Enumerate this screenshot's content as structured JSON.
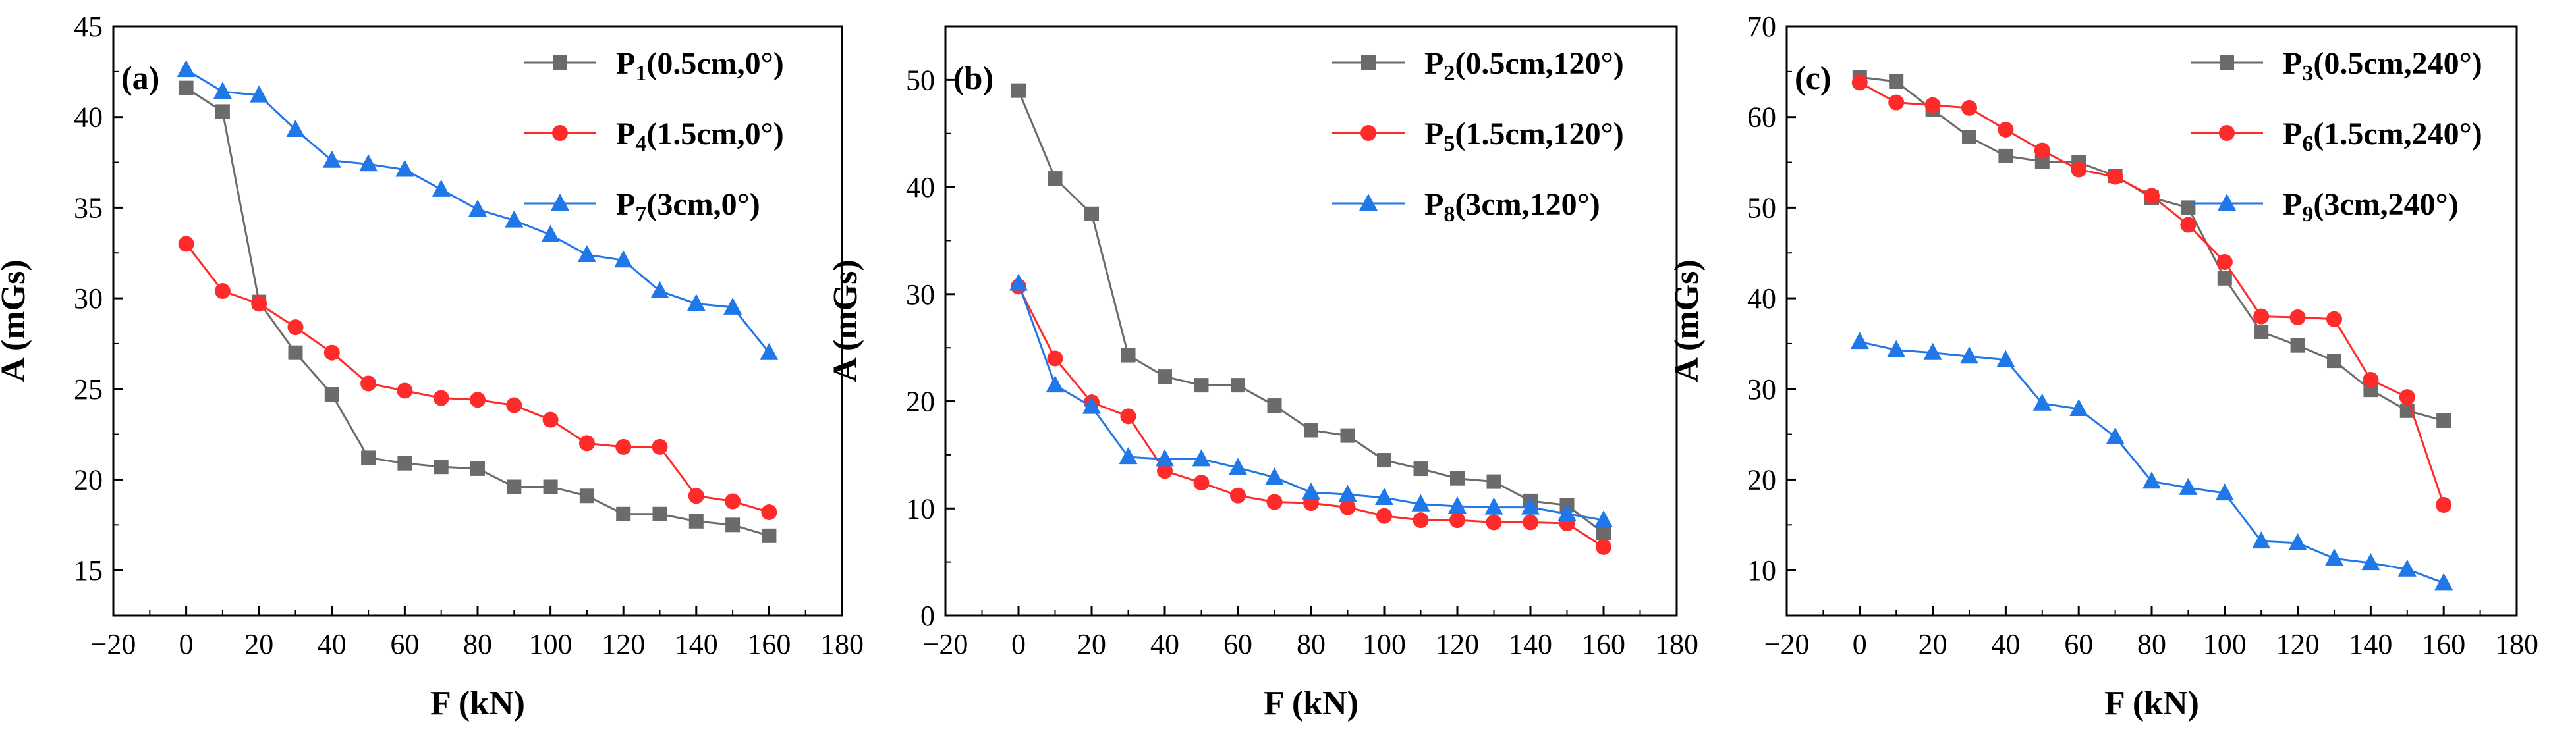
{
  "chart_data": [
    {
      "type": "line",
      "panel_label": "(a)",
      "xlabel": "F (kN)",
      "ylabel": "A (mGs)",
      "xlim": [
        -20,
        180
      ],
      "ylim": [
        12.5,
        45
      ],
      "xticks": [
        -20,
        0,
        20,
        40,
        60,
        80,
        100,
        120,
        140,
        160,
        180
      ],
      "yticks": [
        15,
        20,
        25,
        30,
        35,
        40,
        45
      ],
      "legend_position": "top-right",
      "grid": false,
      "x": [
        0,
        10,
        20,
        30,
        40,
        50,
        60,
        70,
        80,
        90,
        100,
        110,
        120,
        130,
        140,
        150,
        160
      ],
      "series": [
        {
          "name": "P1(0.5cm,0°)",
          "legend": {
            "base": "P",
            "sub": "1",
            "rest": "(0.5cm,0°)"
          },
          "marker": "square",
          "color": "#6b6b6b",
          "values": [
            41.6,
            40.3,
            29.8,
            27.0,
            24.7,
            21.2,
            20.9,
            20.7,
            20.6,
            19.6,
            19.6,
            19.1,
            18.1,
            18.1,
            17.7,
            17.5,
            16.9
          ]
        },
        {
          "name": "P4(1.5cm,0°)",
          "legend": {
            "base": "P",
            "sub": "4",
            "rest": "(1.5cm,0°)"
          },
          "marker": "circle",
          "color": "#ff2a2a",
          "values": [
            33.0,
            30.4,
            29.7,
            28.4,
            27.0,
            25.3,
            24.9,
            24.5,
            24.4,
            24.1,
            23.3,
            22.0,
            21.8,
            21.8,
            19.1,
            18.8,
            18.2
          ]
        },
        {
          "name": "P7(3cm,0°)",
          "legend": {
            "base": "P",
            "sub": "7",
            "rest": "(3cm,0°)"
          },
          "marker": "triangle",
          "color": "#1f77e8",
          "values": [
            42.6,
            41.4,
            41.2,
            39.3,
            37.6,
            37.4,
            37.1,
            36.0,
            34.9,
            34.3,
            33.5,
            32.4,
            32.1,
            30.4,
            29.7,
            29.5,
            27.0
          ]
        }
      ]
    },
    {
      "type": "line",
      "panel_label": "(b)",
      "xlabel": "F (kN)",
      "ylabel": "A (mGs)",
      "xlim": [
        -20,
        180
      ],
      "ylim": [
        0,
        55
      ],
      "xticks": [
        -20,
        0,
        20,
        40,
        60,
        80,
        100,
        120,
        140,
        160,
        180
      ],
      "yticks": [
        0,
        10,
        20,
        30,
        40,
        50
      ],
      "legend_position": "top-right",
      "grid": false,
      "x": [
        0,
        10,
        20,
        30,
        40,
        50,
        60,
        70,
        80,
        90,
        100,
        110,
        120,
        130,
        140,
        150,
        160
      ],
      "series": [
        {
          "name": "P2(0.5cm,120°)",
          "legend": {
            "base": "P",
            "sub": "2",
            "rest": "(0.5cm,120°)"
          },
          "marker": "square",
          "color": "#6b6b6b",
          "values": [
            49.0,
            40.8,
            37.5,
            24.3,
            22.3,
            21.5,
            21.5,
            19.6,
            17.3,
            16.8,
            14.5,
            13.7,
            12.8,
            12.5,
            10.7,
            10.3,
            7.7
          ]
        },
        {
          "name": "P5(1.5cm,120°)",
          "legend": {
            "base": "P",
            "sub": "5",
            "rest": "(1.5cm,120°)"
          },
          "marker": "circle",
          "color": "#ff2a2a",
          "values": [
            30.7,
            24.0,
            19.9,
            18.6,
            13.5,
            12.4,
            11.2,
            10.6,
            10.5,
            10.1,
            9.3,
            8.9,
            8.9,
            8.7,
            8.7,
            8.6,
            6.4
          ]
        },
        {
          "name": "P8(3cm,120°)",
          "legend": {
            "base": "P",
            "sub": "8",
            "rest": "(3cm,120°)"
          },
          "marker": "triangle",
          "color": "#1f77e8",
          "values": [
            31.0,
            21.5,
            19.5,
            14.8,
            14.6,
            14.6,
            13.8,
            12.9,
            11.5,
            11.3,
            11.0,
            10.4,
            10.2,
            10.1,
            10.1,
            9.5,
            8.9
          ]
        }
      ]
    },
    {
      "type": "line",
      "panel_label": "(c)",
      "xlabel": "F (kN)",
      "ylabel": "A (mGs)",
      "xlim": [
        -20,
        180
      ],
      "ylim": [
        5,
        70
      ],
      "xticks": [
        -20,
        0,
        20,
        40,
        60,
        80,
        100,
        120,
        140,
        160,
        180
      ],
      "yticks": [
        10,
        20,
        30,
        40,
        50,
        60,
        70
      ],
      "legend_position": "top-right",
      "grid": false,
      "x": [
        0,
        10,
        20,
        30,
        40,
        50,
        60,
        70,
        80,
        90,
        100,
        110,
        120,
        130,
        140,
        150,
        160
      ],
      "series": [
        {
          "name": "P3(0.5cm,240°)",
          "legend": {
            "base": "P",
            "sub": "3",
            "rest": "(0.5cm,240°)"
          },
          "marker": "square",
          "color": "#6b6b6b",
          "values": [
            64.4,
            63.9,
            60.8,
            57.8,
            55.7,
            55.1,
            55.0,
            53.5,
            51.1,
            50.0,
            42.2,
            36.3,
            34.8,
            33.1,
            29.9,
            27.6,
            26.5
          ]
        },
        {
          "name": "P6(1.5cm,240°)",
          "legend": {
            "base": "P",
            "sub": "6",
            "rest": "(1.5cm,240°)"
          },
          "marker": "circle",
          "color": "#ff2a2a",
          "values": [
            63.8,
            61.6,
            61.3,
            61.0,
            58.6,
            56.3,
            54.2,
            53.4,
            51.3,
            48.1,
            44.0,
            38.0,
            37.9,
            37.7,
            31.0,
            29.1,
            17.2
          ]
        },
        {
          "name": "P9(3cm,240°)",
          "legend": {
            "base": "P",
            "sub": "9",
            "rest": "(3cm,240°)"
          },
          "marker": "triangle",
          "color": "#1f77e8",
          "values": [
            35.2,
            34.3,
            34.0,
            33.6,
            33.2,
            28.4,
            27.8,
            24.7,
            19.8,
            19.1,
            18.5,
            13.2,
            13.0,
            11.3,
            10.8,
            10.1,
            8.6
          ]
        }
      ]
    }
  ]
}
